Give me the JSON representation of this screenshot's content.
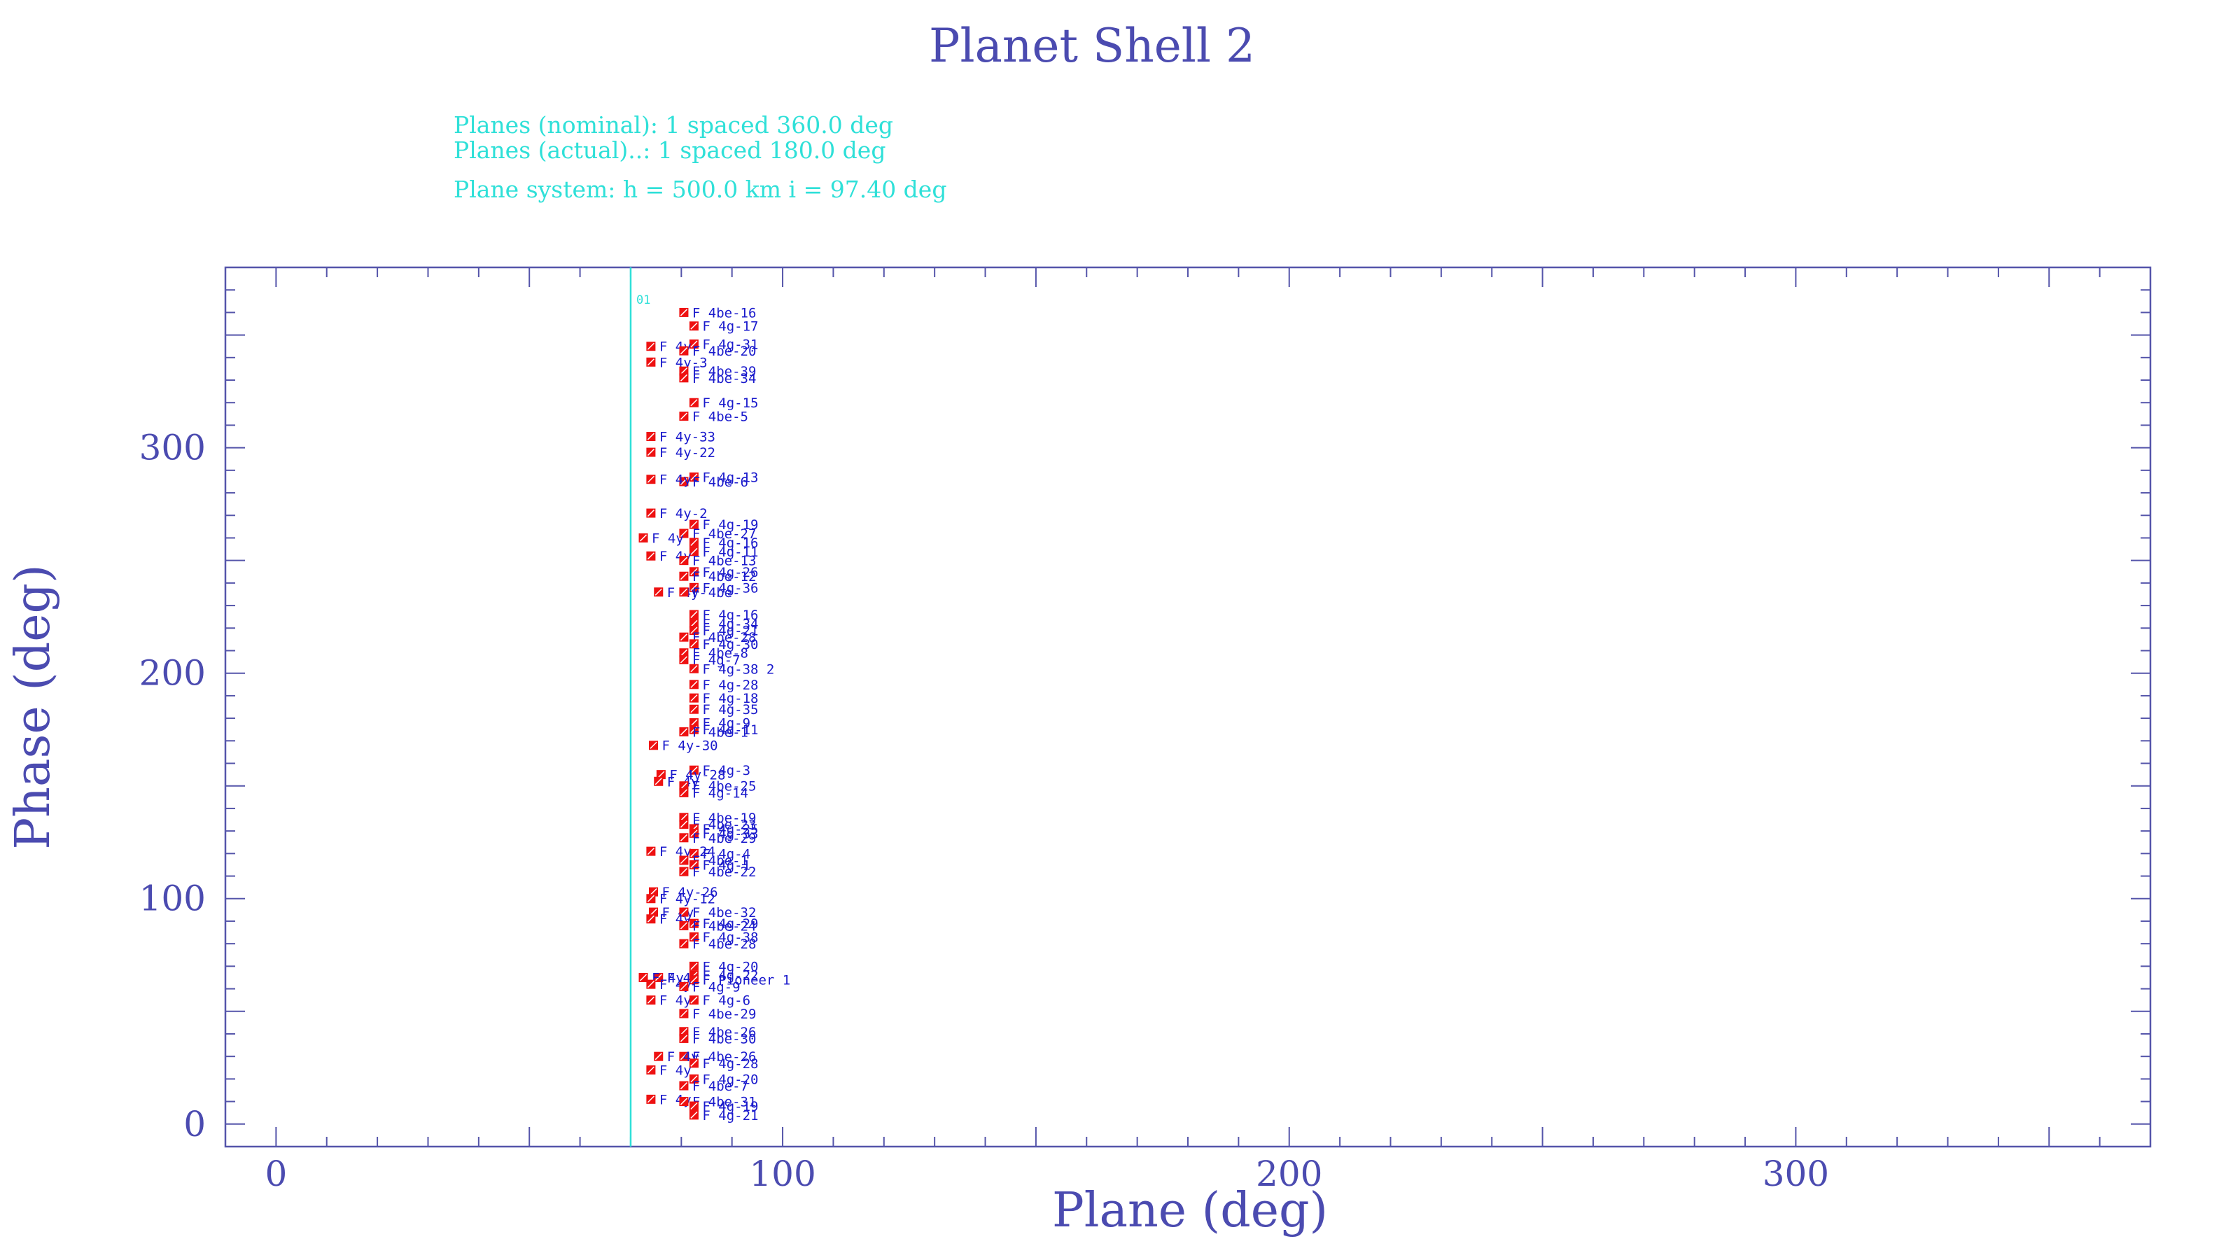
{
  "colors": {
    "text": "#4b4bb0",
    "info": "#2fe0d8",
    "frame": "#5555aa",
    "marker": "#ee1111",
    "label": "#1a1acc",
    "plane_line": "#2fe0d8"
  },
  "info_lines": [
    "Planes (nominal):      1    spaced 360.0 deg",
    "Planes (actual)..:      1    spaced 180.0 deg",
    "Plane system: h = 500.0 km   i = 97.40 deg"
  ],
  "chart_data": {
    "type": "scatter",
    "title": "Planet Shell 2",
    "xlabel": "Plane (deg)",
    "ylabel": "Phase (deg)",
    "xlim": [
      -10,
      370
    ],
    "ylim": [
      -10,
      380
    ],
    "x_ticks": [
      0,
      100,
      200,
      300
    ],
    "y_ticks": [
      0,
      100,
      200,
      300
    ],
    "grid": false,
    "plane_lines": [
      {
        "x": 70,
        "label": "01"
      }
    ],
    "points": [
      {
        "x": 80.5,
        "y": 360,
        "label": "F 4be-16"
      },
      {
        "x": 82.5,
        "y": 354,
        "label": "F 4g-17"
      },
      {
        "x": 82.5,
        "y": 346,
        "label": "F 4g-31"
      },
      {
        "x": 74,
        "y": 345,
        "label": "F 4y-"
      },
      {
        "x": 80.5,
        "y": 343,
        "label": "F 4be-20"
      },
      {
        "x": 74,
        "y": 338,
        "label": "F 4y-3"
      },
      {
        "x": 80.5,
        "y": 334,
        "label": "F 4be-39"
      },
      {
        "x": 80.5,
        "y": 331,
        "label": "F 4be-34"
      },
      {
        "x": 82.5,
        "y": 320,
        "label": "F 4g-15"
      },
      {
        "x": 80.5,
        "y": 314,
        "label": "F 4be-5"
      },
      {
        "x": 74,
        "y": 305,
        "label": "F 4y-33"
      },
      {
        "x": 74,
        "y": 298,
        "label": "F 4y-22"
      },
      {
        "x": 82.5,
        "y": 287,
        "label": "F 4g-13"
      },
      {
        "x": 80.5,
        "y": 285,
        "label": "F 4be-6"
      },
      {
        "x": 74,
        "y": 286,
        "label": "F 4y-"
      },
      {
        "x": 74,
        "y": 271,
        "label": "F 4y-2"
      },
      {
        "x": 82.5,
        "y": 266,
        "label": "F 4g-19"
      },
      {
        "x": 80.5,
        "y": 262,
        "label": "F 4be-27"
      },
      {
        "x": 72.5,
        "y": 260,
        "label": "F 4y"
      },
      {
        "x": 82.5,
        "y": 258,
        "label": "F 4g-16"
      },
      {
        "x": 82.5,
        "y": 254,
        "label": "F 4g-11"
      },
      {
        "x": 74,
        "y": 252,
        "label": "F 4y"
      },
      {
        "x": 80.5,
        "y": 250,
        "label": "F 4be-13"
      },
      {
        "x": 82.5,
        "y": 245,
        "label": "F 4g-26"
      },
      {
        "x": 80.5,
        "y": 243,
        "label": "F 4be-12"
      },
      {
        "x": 82.5,
        "y": 238,
        "label": "F 4g-36"
      },
      {
        "x": 75.5,
        "y": 236,
        "label": "F 4y-"
      },
      {
        "x": 80.5,
        "y": 236,
        "label": "F 4be-"
      },
      {
        "x": 82.5,
        "y": 226,
        "label": "F 4g-16"
      },
      {
        "x": 82.5,
        "y": 222,
        "label": "F 4g-34"
      },
      {
        "x": 82.5,
        "y": 219,
        "label": "F 4g-21"
      },
      {
        "x": 80.5,
        "y": 216,
        "label": "F 4be-28"
      },
      {
        "x": 82.5,
        "y": 213,
        "label": "F 4g-30"
      },
      {
        "x": 80.5,
        "y": 209,
        "label": "F 4be-8"
      },
      {
        "x": 80.5,
        "y": 206,
        "label": "F 4g-7"
      },
      {
        "x": 82.5,
        "y": 202,
        "label": "F 4g-38 2"
      },
      {
        "x": 82.5,
        "y": 195,
        "label": "F 4g-28"
      },
      {
        "x": 82.5,
        "y": 189,
        "label": "F 4g-18"
      },
      {
        "x": 82.5,
        "y": 184,
        "label": "F 4g-35"
      },
      {
        "x": 82.5,
        "y": 178,
        "label": "F 4g-9"
      },
      {
        "x": 82.5,
        "y": 175,
        "label": "F 4g-11"
      },
      {
        "x": 80.5,
        "y": 174,
        "label": "F 4be-1"
      },
      {
        "x": 74.5,
        "y": 168,
        "label": "F 4y-30"
      },
      {
        "x": 82.5,
        "y": 157,
        "label": "F 4g-3"
      },
      {
        "x": 76,
        "y": 155,
        "label": "F 4y-28"
      },
      {
        "x": 75.5,
        "y": 152,
        "label": "F 4y"
      },
      {
        "x": 80.5,
        "y": 150,
        "label": "F 4be-25"
      },
      {
        "x": 80.5,
        "y": 147,
        "label": "F 4g-14"
      },
      {
        "x": 80.5,
        "y": 136,
        "label": "F 4be-19"
      },
      {
        "x": 80.5,
        "y": 133,
        "label": "F 4be-23"
      },
      {
        "x": 82.5,
        "y": 131,
        "label": "F 4g-25"
      },
      {
        "x": 82.5,
        "y": 129,
        "label": "F 4g-33"
      },
      {
        "x": 80.5,
        "y": 127,
        "label": "F 4be-29"
      },
      {
        "x": 74,
        "y": 121,
        "label": "F 4y-24"
      },
      {
        "x": 82.5,
        "y": 120,
        "label": "F 4g-4"
      },
      {
        "x": 80.5,
        "y": 117,
        "label": "F 4be-1"
      },
      {
        "x": 82.5,
        "y": 115,
        "label": "F 4g-1"
      },
      {
        "x": 80.5,
        "y": 112,
        "label": "F 4be-22"
      },
      {
        "x": 74.5,
        "y": 103,
        "label": "F 4y-26"
      },
      {
        "x": 74,
        "y": 100,
        "label": "F 4y-12"
      },
      {
        "x": 74.5,
        "y": 94,
        "label": "F 4y"
      },
      {
        "x": 80.5,
        "y": 94,
        "label": "F 4be-32"
      },
      {
        "x": 74,
        "y": 91,
        "label": "F 4y"
      },
      {
        "x": 82.5,
        "y": 89,
        "label": "F 4g-29"
      },
      {
        "x": 80.5,
        "y": 88,
        "label": "F 4be-24"
      },
      {
        "x": 82.5,
        "y": 83,
        "label": "F 4g-38"
      },
      {
        "x": 80.5,
        "y": 80,
        "label": "F 4be-28"
      },
      {
        "x": 82.5,
        "y": 70,
        "label": "F 4g-20"
      },
      {
        "x": 82.5,
        "y": 66,
        "label": "F 4g-22"
      },
      {
        "x": 75.5,
        "y": 65,
        "label": "F 4y"
      },
      {
        "x": 72.5,
        "y": 65,
        "label": "F 4y"
      },
      {
        "x": 82.5,
        "y": 64,
        "label": "F Pioneer 1"
      },
      {
        "x": 74,
        "y": 62,
        "label": "F 4y"
      },
      {
        "x": 80.5,
        "y": 61,
        "label": "F 4g-9"
      },
      {
        "x": 74,
        "y": 55,
        "label": "F 4y"
      },
      {
        "x": 82.5,
        "y": 55,
        "label": "F 4g-6"
      },
      {
        "x": 80.5,
        "y": 49,
        "label": "F 4be-29"
      },
      {
        "x": 80.5,
        "y": 41,
        "label": "F 4be-26"
      },
      {
        "x": 80.5,
        "y": 38,
        "label": "F 4be-30"
      },
      {
        "x": 80.5,
        "y": 30,
        "label": "F 4be-26"
      },
      {
        "x": 75.5,
        "y": 30,
        "label": "F 4y"
      },
      {
        "x": 82.5,
        "y": 27,
        "label": "F 4g-28"
      },
      {
        "x": 74,
        "y": 24,
        "label": "F 4y"
      },
      {
        "x": 82.5,
        "y": 20,
        "label": "F 4g-20"
      },
      {
        "x": 80.5,
        "y": 17,
        "label": "F 4be-7"
      },
      {
        "x": 74,
        "y": 11,
        "label": "F 4y"
      },
      {
        "x": 80.5,
        "y": 10,
        "label": "F 4be-31"
      },
      {
        "x": 82.5,
        "y": 8,
        "label": "F 4g-19"
      },
      {
        "x": 82.5,
        "y": 4,
        "label": "F 4g-21"
      }
    ]
  }
}
